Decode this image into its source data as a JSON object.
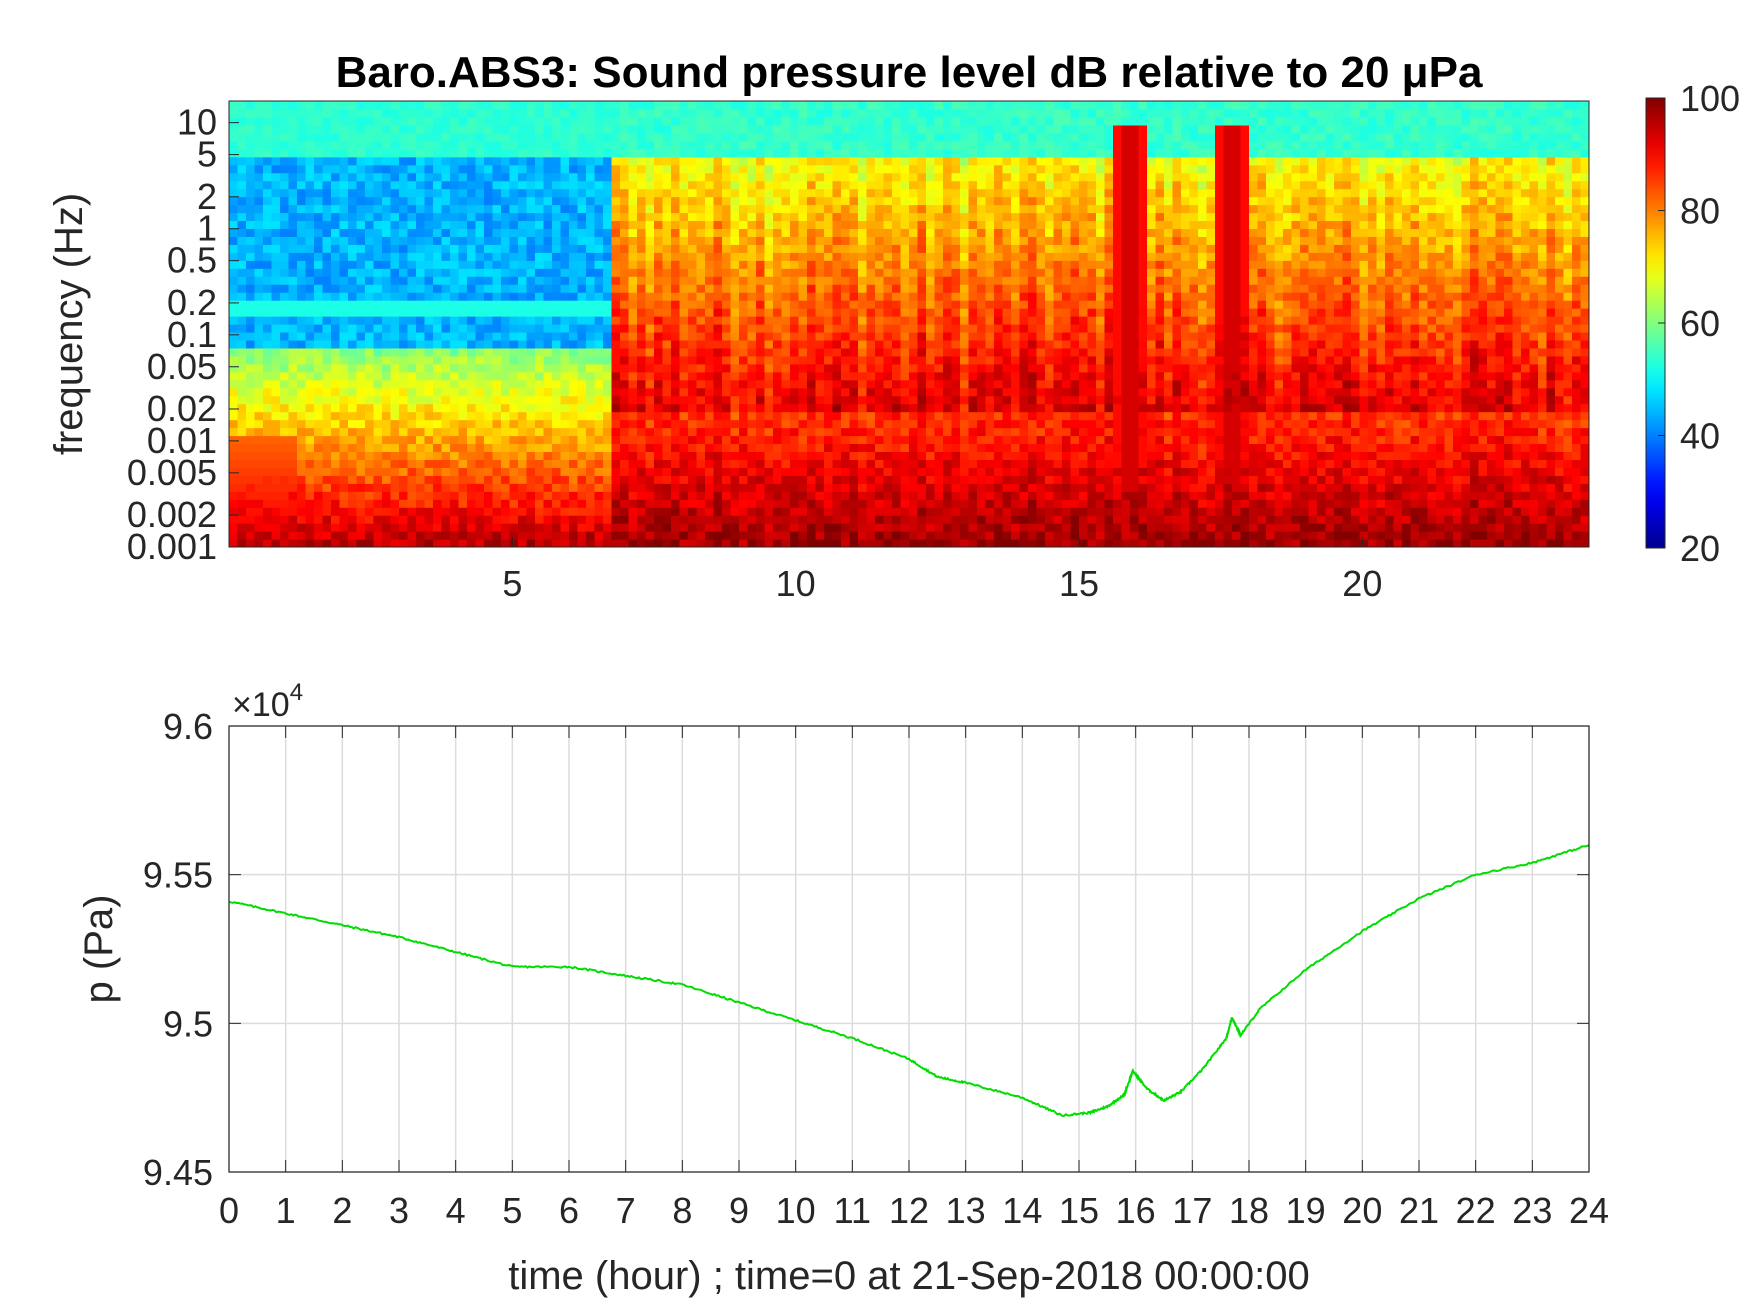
{
  "chart_data": [
    {
      "type": "heatmap",
      "title": "Baro.ABS3: Sound pressure level dB relative to 20 μPa",
      "xlabel": "",
      "ylabel": "frequency (Hz)",
      "xlim": [
        0,
        24
      ],
      "x_ticks": [
        5,
        10,
        15,
        20
      ],
      "x_tick_labels": [
        "5",
        "10",
        "15",
        "20"
      ],
      "y_scale": "log",
      "ylim": [
        0.001,
        16
      ],
      "y_ticks": [
        0.001,
        0.002,
        0.005,
        0.01,
        0.02,
        0.05,
        0.1,
        0.2,
        0.5,
        1,
        2,
        5,
        10
      ],
      "y_tick_labels": [
        "0.001",
        "0.002",
        "0.005",
        "0.01",
        "0.02",
        "0.05",
        "0.1",
        "0.2",
        "0.5",
        "1",
        "2",
        "5",
        "10"
      ],
      "colormap": "jet",
      "colorbar": {
        "range": [
          20,
          100
        ],
        "ticks": [
          20,
          40,
          60,
          80,
          100
        ],
        "tick_labels": [
          "20",
          "40",
          "60",
          "80",
          "100"
        ],
        "colors": [
          "#00008f",
          "#0000ff",
          "#00ffff",
          "#ffff00",
          "#ff0000",
          "#800000"
        ]
      },
      "events": [
        {
          "hour": 15.9,
          "level_db": 95
        },
        {
          "hour": 17.7,
          "level_db": 95
        }
      ],
      "grid": false
    },
    {
      "type": "line",
      "title": "",
      "xlabel": "time (hour) ; time=0 at 21-Sep-2018 00:00:00",
      "ylabel": "p (Pa)",
      "xlim": [
        0,
        24
      ],
      "ylim": [
        94500,
        96000
      ],
      "x_ticks": [
        0,
        1,
        2,
        3,
        4,
        5,
        6,
        7,
        8,
        9,
        10,
        11,
        12,
        13,
        14,
        15,
        16,
        17,
        18,
        19,
        20,
        21,
        22,
        23,
        24
      ],
      "x_tick_labels": [
        "0",
        "1",
        "2",
        "3",
        "4",
        "5",
        "6",
        "7",
        "8",
        "9",
        "10",
        "11",
        "12",
        "13",
        "14",
        "15",
        "16",
        "17",
        "18",
        "19",
        "20",
        "21",
        "22",
        "23",
        "24"
      ],
      "y_ticks": [
        94500,
        95000,
        95500,
        96000
      ],
      "y_tick_labels": [
        "9.45",
        "9.5",
        "9.55",
        "9.6"
      ],
      "y_exponent_label": "×10",
      "y_exponent_power": "4",
      "grid": true,
      "series": [
        {
          "color": "#00dd00",
          "x": [
            0,
            1,
            2,
            3,
            4,
            5,
            6,
            7,
            8,
            9,
            10,
            11,
            12,
            12.5,
            13,
            14,
            14.7,
            15.2,
            15.5,
            15.8,
            15.95,
            16.2,
            16.5,
            16.8,
            17.2,
            17.6,
            17.7,
            17.85,
            18.2,
            19,
            20,
            21,
            22,
            23,
            24
          ],
          "y": [
            95410,
            95370,
            95330,
            95290,
            95240,
            95190,
            95190,
            95160,
            95130,
            95070,
            95010,
            94950,
            94880,
            94820,
            94800,
            94750,
            94690,
            94700,
            94720,
            94760,
            94840,
            94780,
            94740,
            94770,
            94850,
            94950,
            95020,
            94960,
            95050,
            95180,
            95310,
            95420,
            95500,
            95540,
            95600
          ]
        }
      ]
    }
  ]
}
